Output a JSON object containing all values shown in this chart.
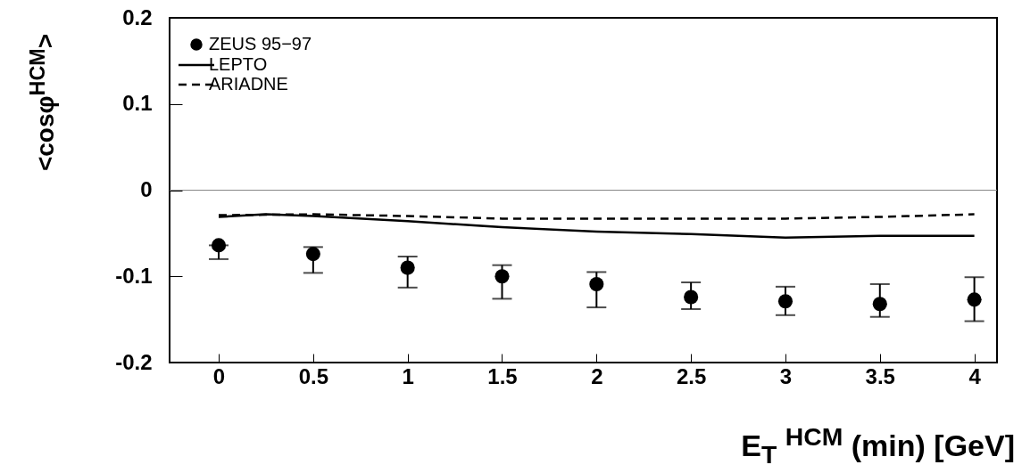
{
  "chart_data": {
    "type": "scatter",
    "xlabel": "E$_{T}$ $^{HCM}$ (min) [GeV]",
    "ylabel": "<cosφ$^{HCM}$>",
    "x": [
      0,
      0.5,
      1,
      1.5,
      2,
      2.5,
      3,
      3.5,
      4
    ],
    "series": [
      {
        "name": "ZEUS 95−97",
        "color": "#000000",
        "marker": "circle",
        "values": [
          -0.064,
          -0.074,
          -0.09,
          -0.1,
          -0.109,
          -0.124,
          -0.129,
          -0.132,
          -0.127
        ],
        "errors": [
          [
            -0.08,
            -0.064
          ],
          [
            -0.096,
            -0.066
          ],
          [
            -0.113,
            -0.077
          ],
          [
            -0.126,
            -0.087
          ],
          [
            -0.136,
            -0.095
          ],
          [
            -0.138,
            -0.107
          ],
          [
            -0.145,
            -0.112
          ],
          [
            -0.147,
            -0.109
          ],
          [
            -0.152,
            -0.101
          ]
        ]
      },
      {
        "name": "LEPTO",
        "type": "line",
        "color": "#000000",
        "line_style": "solid",
        "x": [
          0,
          0.25,
          0.5,
          1,
          1.5,
          2,
          2.5,
          3,
          3.5,
          4
        ],
        "values": [
          -0.031,
          -0.028,
          -0.03,
          -0.036,
          -0.043,
          -0.048,
          -0.051,
          -0.055,
          -0.053,
          -0.053
        ]
      },
      {
        "name": "ARIADNE",
        "type": "line",
        "color": "#000000",
        "line_style": "dashed",
        "x": [
          0,
          0.5,
          1,
          1.5,
          2,
          2.5,
          3,
          3.5,
          4
        ],
        "values": [
          -0.029,
          -0.028,
          -0.03,
          -0.033,
          -0.033,
          -0.033,
          -0.033,
          -0.031,
          -0.028
        ]
      }
    ],
    "xlim": [
      -0.26,
      4.12
    ],
    "xticks": [
      0,
      0.5,
      1,
      1.5,
      2,
      2.5,
      3,
      3.5,
      4
    ],
    "ylim": [
      -0.2,
      0.2
    ],
    "yticks": [
      -0.2,
      -0.1,
      0,
      0.1,
      0.2
    ],
    "ref_lines": [
      {
        "axis": "y",
        "value": 0,
        "color": "#888888"
      }
    ],
    "grid": false,
    "legend": "top left"
  }
}
